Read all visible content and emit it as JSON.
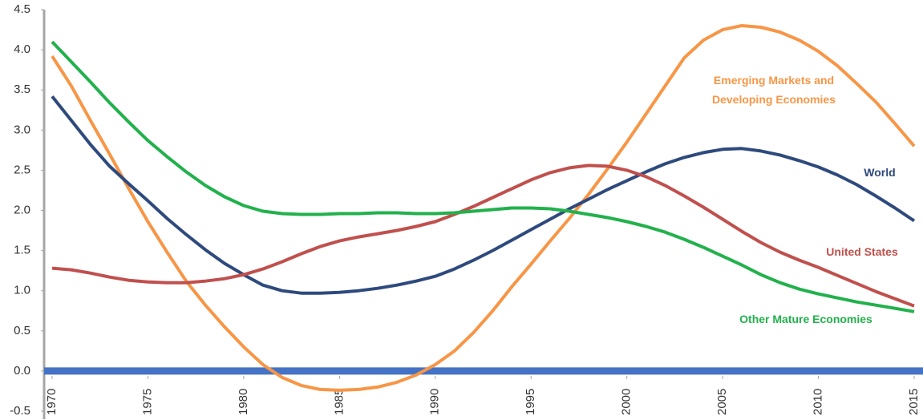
{
  "chart_data": {
    "type": "line",
    "x": [
      1970,
      1971,
      1972,
      1973,
      1974,
      1975,
      1976,
      1977,
      1978,
      1979,
      1980,
      1981,
      1982,
      1983,
      1984,
      1985,
      1986,
      1987,
      1988,
      1989,
      1990,
      1991,
      1992,
      1993,
      1994,
      1995,
      1996,
      1997,
      1998,
      1999,
      2000,
      2001,
      2002,
      2003,
      2004,
      2005,
      2006,
      2007,
      2008,
      2009,
      2010,
      2011,
      2012,
      2013,
      2014,
      2015
    ],
    "series": [
      {
        "name": "Emerging Markets and Developing Economies",
        "color": "#f79646",
        "values": [
          3.92,
          3.55,
          3.12,
          2.7,
          2.27,
          1.86,
          1.48,
          1.12,
          0.82,
          0.55,
          0.3,
          0.08,
          -0.08,
          -0.18,
          -0.23,
          -0.24,
          -0.23,
          -0.2,
          -0.14,
          -0.05,
          0.08,
          0.25,
          0.48,
          0.75,
          1.05,
          1.33,
          1.62,
          1.9,
          2.2,
          2.52,
          2.85,
          3.2,
          3.55,
          3.9,
          4.12,
          4.25,
          4.3,
          4.28,
          4.22,
          4.12,
          3.98,
          3.8,
          3.58,
          3.35,
          3.08,
          2.8
        ]
      },
      {
        "name": "World",
        "color": "#2e4a7d",
        "values": [
          3.42,
          3.12,
          2.82,
          2.55,
          2.33,
          2.12,
          1.9,
          1.7,
          1.51,
          1.34,
          1.2,
          1.07,
          1.0,
          0.97,
          0.97,
          0.98,
          1.0,
          1.03,
          1.07,
          1.12,
          1.18,
          1.27,
          1.38,
          1.5,
          1.63,
          1.76,
          1.89,
          2.02,
          2.14,
          2.26,
          2.37,
          2.48,
          2.58,
          2.66,
          2.72,
          2.76,
          2.77,
          2.74,
          2.69,
          2.62,
          2.54,
          2.44,
          2.32,
          2.18,
          2.03,
          1.87
        ]
      },
      {
        "name": "United States",
        "color": "#c0504d",
        "values": [
          1.28,
          1.26,
          1.22,
          1.17,
          1.13,
          1.11,
          1.1,
          1.1,
          1.12,
          1.15,
          1.2,
          1.27,
          1.36,
          1.46,
          1.55,
          1.62,
          1.67,
          1.71,
          1.75,
          1.8,
          1.86,
          1.95,
          2.05,
          2.16,
          2.27,
          2.38,
          2.47,
          2.53,
          2.56,
          2.55,
          2.5,
          2.42,
          2.31,
          2.18,
          2.04,
          1.89,
          1.74,
          1.6,
          1.48,
          1.38,
          1.29,
          1.19,
          1.09,
          0.99,
          0.9,
          0.81
        ]
      },
      {
        "name": "Other Mature Economies",
        "color": "#22b14c",
        "values": [
          4.1,
          3.85,
          3.6,
          3.34,
          3.1,
          2.87,
          2.67,
          2.48,
          2.31,
          2.17,
          2.06,
          1.99,
          1.96,
          1.95,
          1.95,
          1.96,
          1.96,
          1.97,
          1.97,
          1.96,
          1.96,
          1.97,
          1.99,
          2.01,
          2.03,
          2.03,
          2.02,
          1.99,
          1.95,
          1.91,
          1.86,
          1.8,
          1.73,
          1.64,
          1.54,
          1.43,
          1.32,
          1.2,
          1.1,
          1.02,
          0.96,
          0.91,
          0.86,
          0.82,
          0.78,
          0.74
        ]
      }
    ],
    "xlim": [
      1970,
      2015
    ],
    "xticks": [
      1970,
      1975,
      1980,
      1985,
      1990,
      1995,
      2000,
      2005,
      2010,
      2015
    ],
    "ylim": [
      -0.5,
      4.5
    ],
    "yticks": [
      -0.5,
      {
        "value": 0,
        "label": "0.0"
      },
      0.5,
      {
        "value": 1,
        "label": "1.0"
      },
      1.5,
      {
        "value": 2,
        "label": "2.0"
      },
      2.5,
      {
        "value": 3,
        "label": "3.0"
      },
      3.5,
      {
        "value": 4,
        "label": "4.0"
      },
      4.5
    ]
  }
}
